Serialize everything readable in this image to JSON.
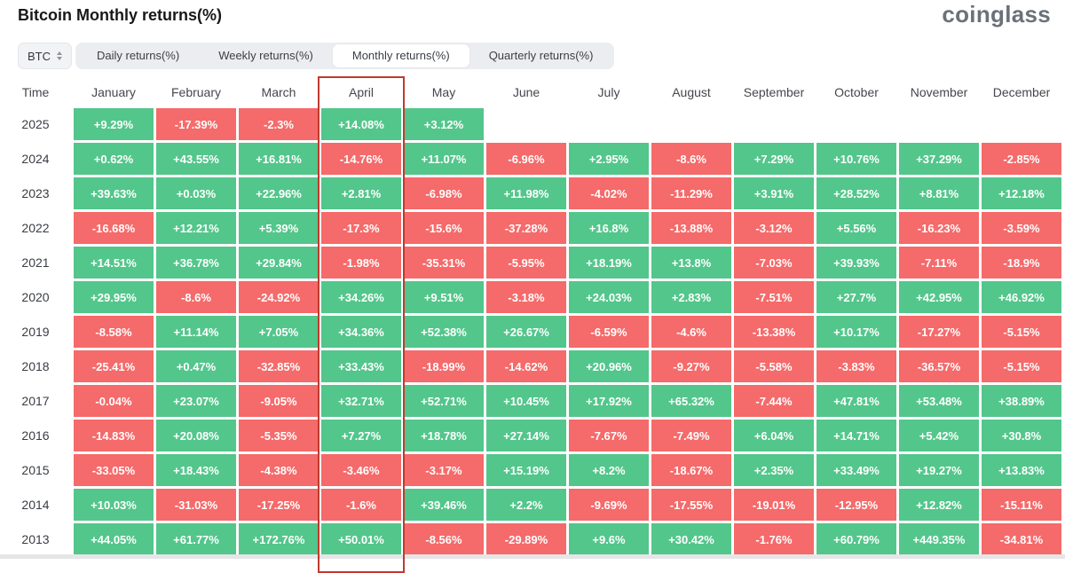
{
  "page": {
    "title": "Bitcoin Monthly returns(%)",
    "brand": "coinglass"
  },
  "controls": {
    "symbol_select": {
      "value": "BTC"
    },
    "tabs": [
      {
        "label": "Daily returns(%)",
        "active": false
      },
      {
        "label": "Weekly returns(%)",
        "active": false
      },
      {
        "label": "Monthly returns(%)",
        "active": true
      },
      {
        "label": "Quarterly returns(%)",
        "active": false
      }
    ]
  },
  "colors": {
    "positive": "#53c68b",
    "negative": "#f56a6a",
    "highlight_border": "#bf3a2f"
  },
  "chart_data": {
    "type": "heatmap",
    "title": "Bitcoin Monthly returns(%)",
    "corner_label": "Time",
    "columns": [
      "January",
      "February",
      "March",
      "April",
      "May",
      "June",
      "July",
      "August",
      "September",
      "October",
      "November",
      "December"
    ],
    "highlighted_column": "April",
    "rows": [
      {
        "year": "2025",
        "values": [
          "+9.29%",
          "-17.39%",
          "-2.3%",
          "+14.08%",
          "+3.12%",
          null,
          null,
          null,
          null,
          null,
          null,
          null
        ]
      },
      {
        "year": "2024",
        "values": [
          "+0.62%",
          "+43.55%",
          "+16.81%",
          "-14.76%",
          "+11.07%",
          "-6.96%",
          "+2.95%",
          "-8.6%",
          "+7.29%",
          "+10.76%",
          "+37.29%",
          "-2.85%"
        ]
      },
      {
        "year": "2023",
        "values": [
          "+39.63%",
          "+0.03%",
          "+22.96%",
          "+2.81%",
          "-6.98%",
          "+11.98%",
          "-4.02%",
          "-11.29%",
          "+3.91%",
          "+28.52%",
          "+8.81%",
          "+12.18%"
        ]
      },
      {
        "year": "2022",
        "values": [
          "-16.68%",
          "+12.21%",
          "+5.39%",
          "-17.3%",
          "-15.6%",
          "-37.28%",
          "+16.8%",
          "-13.88%",
          "-3.12%",
          "+5.56%",
          "-16.23%",
          "-3.59%"
        ]
      },
      {
        "year": "2021",
        "values": [
          "+14.51%",
          "+36.78%",
          "+29.84%",
          "-1.98%",
          "-35.31%",
          "-5.95%",
          "+18.19%",
          "+13.8%",
          "-7.03%",
          "+39.93%",
          "-7.11%",
          "-18.9%"
        ]
      },
      {
        "year": "2020",
        "values": [
          "+29.95%",
          "-8.6%",
          "-24.92%",
          "+34.26%",
          "+9.51%",
          "-3.18%",
          "+24.03%",
          "+2.83%",
          "-7.51%",
          "+27.7%",
          "+42.95%",
          "+46.92%"
        ]
      },
      {
        "year": "2019",
        "values": [
          "-8.58%",
          "+11.14%",
          "+7.05%",
          "+34.36%",
          "+52.38%",
          "+26.67%",
          "-6.59%",
          "-4.6%",
          "-13.38%",
          "+10.17%",
          "-17.27%",
          "-5.15%"
        ]
      },
      {
        "year": "2018",
        "values": [
          "-25.41%",
          "+0.47%",
          "-32.85%",
          "+33.43%",
          "-18.99%",
          "-14.62%",
          "+20.96%",
          "-9.27%",
          "-5.58%",
          "-3.83%",
          "-36.57%",
          "-5.15%"
        ]
      },
      {
        "year": "2017",
        "values": [
          "-0.04%",
          "+23.07%",
          "-9.05%",
          "+32.71%",
          "+52.71%",
          "+10.45%",
          "+17.92%",
          "+65.32%",
          "-7.44%",
          "+47.81%",
          "+53.48%",
          "+38.89%"
        ]
      },
      {
        "year": "2016",
        "values": [
          "-14.83%",
          "+20.08%",
          "-5.35%",
          "+7.27%",
          "+18.78%",
          "+27.14%",
          "-7.67%",
          "-7.49%",
          "+6.04%",
          "+14.71%",
          "+5.42%",
          "+30.8%"
        ]
      },
      {
        "year": "2015",
        "values": [
          "-33.05%",
          "+18.43%",
          "-4.38%",
          "-3.46%",
          "-3.17%",
          "+15.19%",
          "+8.2%",
          "-18.67%",
          "+2.35%",
          "+33.49%",
          "+19.27%",
          "+13.83%"
        ]
      },
      {
        "year": "2014",
        "values": [
          "+10.03%",
          "-31.03%",
          "-17.25%",
          "-1.6%",
          "+39.46%",
          "+2.2%",
          "-9.69%",
          "-17.55%",
          "-19.01%",
          "-12.95%",
          "+12.82%",
          "-15.11%"
        ]
      },
      {
        "year": "2013",
        "values": [
          "+44.05%",
          "+61.77%",
          "+172.76%",
          "+50.01%",
          "-8.56%",
          "-29.89%",
          "+9.6%",
          "+30.42%",
          "-1.76%",
          "+60.79%",
          "+449.35%",
          "-34.81%"
        ]
      }
    ]
  }
}
